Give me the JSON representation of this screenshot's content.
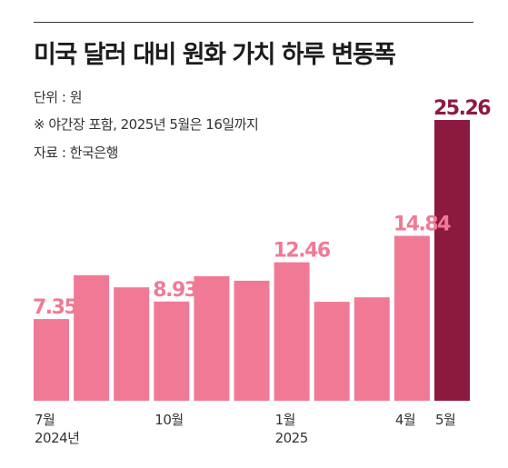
{
  "title": "미국 달러 대비 원화 가치 하루 변동폭",
  "notes": {
    "unit": "단위 : 원",
    "remark": "※ 야간장 포함, 2025년 5월은 16일까지",
    "source": "자료 : 한국은행"
  },
  "colors": {
    "bar": "#f07a95",
    "highlight": "#8c1a3f",
    "label": "#f07a95",
    "highlight_label": "#8c1a3f"
  },
  "chart_data": {
    "type": "bar",
    "categories": [
      "2024-07",
      "2024-08",
      "2024-09",
      "2024-10",
      "2024-11",
      "2024-12",
      "2025-01",
      "2025-02",
      "2025-03",
      "2025-04",
      "2025-05"
    ],
    "values": [
      7.35,
      11.3,
      10.2,
      8.93,
      11.2,
      10.8,
      12.46,
      8.9,
      9.3,
      14.84,
      25.26
    ],
    "data_labels": [
      "7.35",
      "",
      "",
      "8.93",
      "",
      "",
      "12.46",
      "",
      "",
      "14.84",
      "25.26"
    ],
    "tick_labels": [
      "7월",
      "",
      "",
      "10월",
      "",
      "",
      "1월",
      "",
      "",
      "4월",
      "5월"
    ],
    "year_labels": [
      "2024년",
      "",
      "",
      "",
      "",
      "",
      "2025",
      "",
      "",
      "",
      ""
    ],
    "highlight_index": 10,
    "ylim": [
      0,
      25.26
    ]
  }
}
